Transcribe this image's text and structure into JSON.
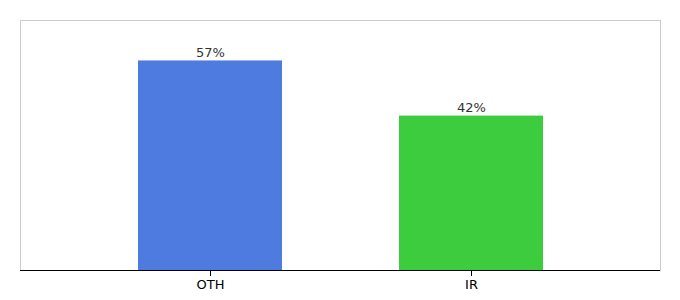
{
  "chart_data": {
    "type": "bar",
    "categories": [
      "OTH",
      "IR"
    ],
    "values": [
      57,
      42
    ],
    "value_labels": [
      "57%",
      "42%"
    ],
    "colors": [
      "#4d7be0",
      "#3dcc3d"
    ],
    "ylim": [
      0,
      68
    ],
    "tick_labels": "x",
    "data_labels": true,
    "grid": false
  }
}
